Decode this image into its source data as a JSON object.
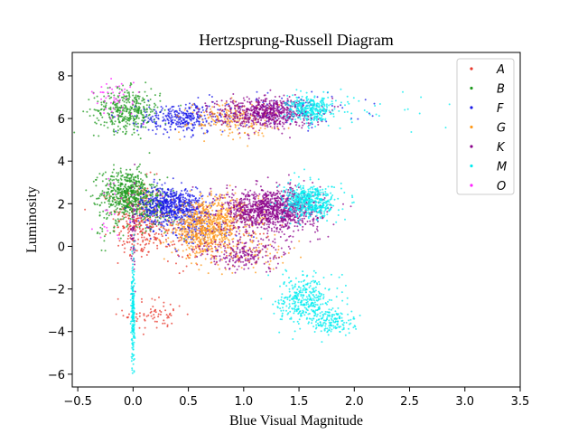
{
  "chart_data": {
    "type": "scatter",
    "title": "Hertzsprung-Russell Diagram",
    "xlabel": "Blue Visual Magnitude",
    "ylabel": "Luminosity",
    "xlim": [
      -0.55,
      3.5
    ],
    "ylim": [
      -6.6,
      9.1
    ],
    "xticks": [
      -0.5,
      0.0,
      0.5,
      1.0,
      1.5,
      2.0,
      2.5,
      3.0,
      3.5
    ],
    "xtick_labels": [
      "−0.5",
      "0.0",
      "0.5",
      "1.0",
      "1.5",
      "2.0",
      "2.5",
      "3.0",
      "3.5"
    ],
    "yticks": [
      -6,
      -4,
      -2,
      0,
      2,
      4,
      6,
      8
    ],
    "ytick_labels": [
      "−6",
      "−4",
      "−2",
      "0",
      "2",
      "4",
      "6",
      "8"
    ],
    "grid": false,
    "legend_position": "top-right",
    "series": [
      {
        "name": "A",
        "color": "#e8372b",
        "clusters": [
          {
            "cx": 0.05,
            "cy": 1.3,
            "sx": 0.12,
            "sy": 0.9,
            "n": 260
          },
          {
            "cx": 0.2,
            "cy": -3.2,
            "sx": 0.14,
            "sy": 0.4,
            "n": 70
          },
          {
            "cx": 0.3,
            "cy": 0.5,
            "sx": 0.2,
            "sy": 0.5,
            "n": 90
          },
          {
            "cx": 0.7,
            "cy": 0.0,
            "sx": 0.3,
            "sy": 0.5,
            "n": 60
          }
        ]
      },
      {
        "name": "B",
        "color": "#1e9a1e",
        "clusters": [
          {
            "cx": -0.05,
            "cy": 2.5,
            "sx": 0.12,
            "sy": 0.55,
            "n": 520
          },
          {
            "cx": -0.05,
            "cy": 6.4,
            "sx": 0.15,
            "sy": 0.5,
            "n": 380
          },
          {
            "cx": 0.15,
            "cy": 1.8,
            "sx": 0.15,
            "sy": 0.5,
            "n": 150
          },
          {
            "cx": -0.2,
            "cy": 1.0,
            "sx": 0.08,
            "sy": 0.9,
            "n": 40
          }
        ]
      },
      {
        "name": "F",
        "color": "#1818e8",
        "clusters": [
          {
            "cx": 0.35,
            "cy": 1.9,
            "sx": 0.14,
            "sy": 0.45,
            "n": 620
          },
          {
            "cx": 0.45,
            "cy": 6.0,
            "sx": 0.2,
            "sy": 0.35,
            "n": 330
          },
          {
            "cx": 1.4,
            "cy": 6.4,
            "sx": 0.35,
            "sy": 0.4,
            "n": 80
          },
          {
            "cx": 0.6,
            "cy": 0.8,
            "sx": 0.2,
            "sy": 0.5,
            "n": 120
          }
        ]
      },
      {
        "name": "G",
        "color": "#ff9a1a",
        "clusters": [
          {
            "cx": 0.65,
            "cy": 0.8,
            "sx": 0.15,
            "sy": 0.6,
            "n": 650
          },
          {
            "cx": 0.9,
            "cy": 6.0,
            "sx": 0.2,
            "sy": 0.4,
            "n": 220
          },
          {
            "cx": 0.9,
            "cy": 1.5,
            "sx": 0.15,
            "sy": 0.5,
            "n": 180
          },
          {
            "cx": 1.1,
            "cy": -0.3,
            "sx": 0.2,
            "sy": 0.4,
            "n": 80
          }
        ]
      },
      {
        "name": "K",
        "color": "#8b008b",
        "clusters": [
          {
            "cx": 1.25,
            "cy": 1.7,
            "sx": 0.22,
            "sy": 0.5,
            "n": 1100
          },
          {
            "cx": 1.2,
            "cy": 6.3,
            "sx": 0.22,
            "sy": 0.35,
            "n": 650
          },
          {
            "cx": 1.0,
            "cy": -0.4,
            "sx": 0.2,
            "sy": 0.35,
            "n": 200
          },
          {
            "cx": 0.0,
            "cy": 0.5,
            "sx": 0.01,
            "sy": 1.4,
            "n": 60
          }
        ]
      },
      {
        "name": "M",
        "color": "#00ecf0",
        "clusters": [
          {
            "cx": 1.6,
            "cy": 2.1,
            "sx": 0.12,
            "sy": 0.4,
            "n": 500
          },
          {
            "cx": 1.6,
            "cy": 6.4,
            "sx": 0.1,
            "sy": 0.3,
            "n": 300
          },
          {
            "cx": 1.55,
            "cy": -2.5,
            "sx": 0.12,
            "sy": 0.6,
            "n": 350
          },
          {
            "cx": 1.8,
            "cy": -3.5,
            "sx": 0.1,
            "sy": 0.3,
            "n": 150
          },
          {
            "cx": 0.0,
            "cy": -3.0,
            "sx": 0.008,
            "sy": 1.3,
            "n": 200
          },
          {
            "cx": 2.1,
            "cy": 6.5,
            "sx": 0.35,
            "sy": 0.4,
            "n": 40
          }
        ]
      },
      {
        "name": "O",
        "color": "#ff20ff",
        "clusters": [
          {
            "cx": -0.15,
            "cy": 7.0,
            "sx": 0.1,
            "sy": 0.5,
            "n": 50
          },
          {
            "cx": -0.2,
            "cy": 1.5,
            "sx": 0.1,
            "sy": 0.8,
            "n": 20
          }
        ]
      }
    ]
  }
}
